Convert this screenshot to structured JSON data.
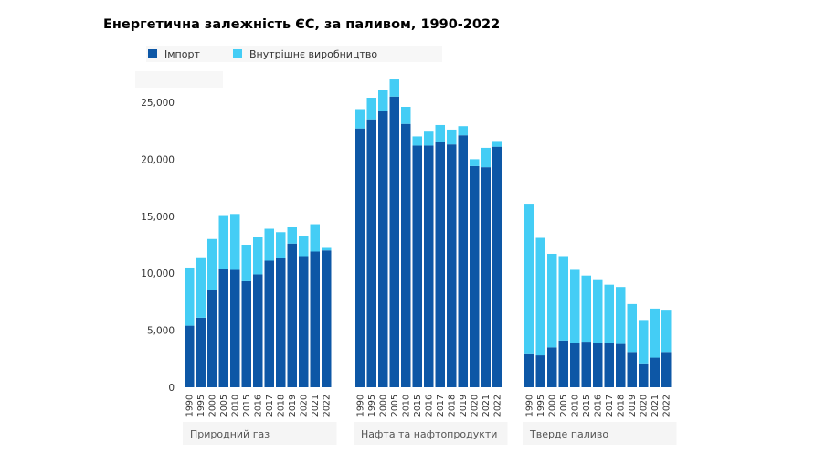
{
  "title": "Енергетична залежність ЄС, за паливом, 1990-2022",
  "legend": [
    {
      "label": "Імпорт",
      "color": "#0d57a6"
    },
    {
      "label": "Внутрішнє виробництво",
      "color": "#44cdf5"
    }
  ],
  "chart_data": {
    "type": "bar",
    "stacked": true,
    "ylim": [
      0,
      27500
    ],
    "yticks": [
      {
        "value": 0,
        "label": "0"
      },
      {
        "value": 5000,
        "label": "5,000"
      },
      {
        "value": 10000,
        "label": "10,000"
      },
      {
        "value": 15000,
        "label": "15,000"
      },
      {
        "value": 20000,
        "label": "20,000"
      },
      {
        "value": 25000,
        "label": "25,000"
      }
    ],
    "categories": [
      "1990",
      "1995",
      "2000",
      "2005",
      "2010",
      "2015",
      "2016",
      "2017",
      "2018",
      "2019",
      "2020",
      "2021",
      "2022"
    ],
    "groups": [
      {
        "name": "Природний газ",
        "series": [
          {
            "name": "Імпорт",
            "values": [
              5400,
              6100,
              8500,
              10400,
              10300,
              9300,
              9900,
              11100,
              11300,
              12600,
              11500,
              11900,
              12000
            ]
          },
          {
            "name": "Внутрішнє виробництво",
            "values": [
              5100,
              5300,
              4500,
              4700,
              4900,
              3200,
              3300,
              2800,
              2300,
              1500,
              1800,
              2400,
              300
            ]
          }
        ]
      },
      {
        "name": "Нафта та нафтопродукти",
        "series": [
          {
            "name": "Імпорт",
            "values": [
              22700,
              23500,
              24200,
              25500,
              23100,
              21200,
              21200,
              21500,
              21300,
              22100,
              19400,
              19300,
              21100
            ]
          },
          {
            "name": "Внутрішнє виробництво",
            "values": [
              1700,
              1900,
              1900,
              1500,
              1500,
              800,
              1300,
              1500,
              1300,
              800,
              600,
              1700,
              500
            ]
          }
        ]
      },
      {
        "name": "Тверде паливо",
        "series": [
          {
            "name": "Імпорт",
            "values": [
              2900,
              2800,
              3500,
              4100,
              3900,
              4000,
              3900,
              3900,
              3800,
              3100,
              2100,
              2600,
              3100
            ]
          },
          {
            "name": "Внутрішнє виробництво",
            "values": [
              13200,
              10300,
              8200,
              7400,
              6400,
              5800,
              5500,
              5100,
              5000,
              4200,
              3800,
              4300,
              3700
            ]
          }
        ]
      }
    ],
    "grid": false,
    "legend_position": "top-left"
  }
}
